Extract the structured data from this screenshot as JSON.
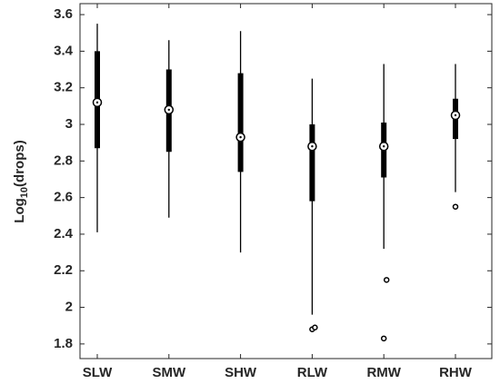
{
  "chart_data": {
    "type": "box",
    "y_label": [
      "Log",
      "10",
      "(drops)"
    ],
    "categories": [
      "SLW",
      "SMW",
      "SHW",
      "RLW",
      "RMW",
      "RHW"
    ],
    "boxes": [
      {
        "whisker_low": 2.41,
        "q1": 2.87,
        "median": 3.12,
        "q3": 3.4,
        "whisker_high": 3.55,
        "outliers": []
      },
      {
        "whisker_low": 2.49,
        "q1": 2.85,
        "median": 3.08,
        "q3": 3.3,
        "whisker_high": 3.46,
        "outliers": []
      },
      {
        "whisker_low": 2.3,
        "q1": 2.74,
        "median": 2.93,
        "q3": 3.28,
        "whisker_high": 3.51,
        "outliers": []
      },
      {
        "whisker_low": 1.96,
        "q1": 2.58,
        "median": 2.88,
        "q3": 3.0,
        "whisker_high": 3.25,
        "outliers": [
          1.88,
          1.89
        ]
      },
      {
        "whisker_low": 2.32,
        "q1": 2.71,
        "median": 2.88,
        "q3": 3.01,
        "whisker_high": 3.33,
        "outliers": [
          1.83,
          2.15
        ]
      },
      {
        "whisker_low": 2.63,
        "q1": 2.92,
        "median": 3.05,
        "q3": 3.14,
        "whisker_high": 3.33,
        "outliers": [
          2.55
        ]
      }
    ],
    "color": "#000000",
    "ylim": [
      1.72,
      3.66
    ],
    "yticks": [
      1.8,
      2,
      2.2,
      2.4,
      2.6,
      2.8,
      3,
      3.2,
      3.4,
      3.6
    ],
    "grid": false
  }
}
